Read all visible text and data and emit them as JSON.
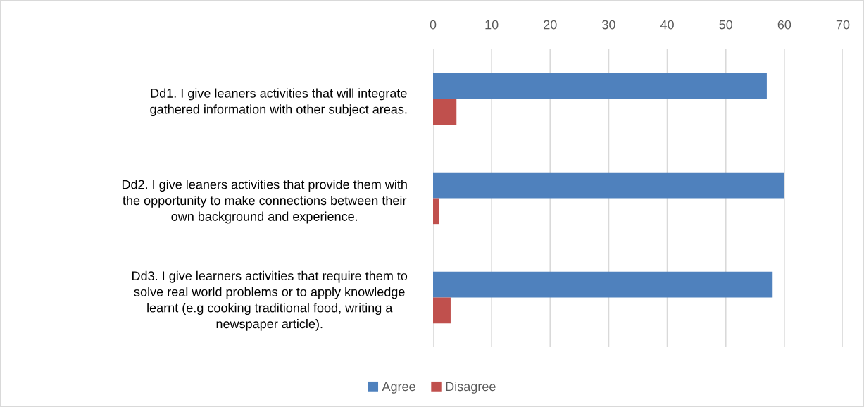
{
  "chart_data": {
    "type": "bar",
    "orientation": "horizontal",
    "categories": [
      "Dd1. I give leaners activities that will integrate\ngathered information with other subject areas.",
      "Dd2. I give leaners activities that provide them with\nthe opportunity to make connections between their\nown background and experience.",
      "Dd3. I give learners activities that require them to\nsolve real world problems or to apply knowledge\nlearnt (e.g cooking traditional food, writing a\nnewspaper article)."
    ],
    "series": [
      {
        "name": "Agree",
        "color": "#4f81bd",
        "values": [
          57,
          60,
          58
        ]
      },
      {
        "name": "Disagree",
        "color": "#c0504d",
        "values": [
          4,
          1,
          3
        ]
      }
    ],
    "xlim": [
      0,
      70
    ],
    "xticks": [
      0,
      10,
      20,
      30,
      40,
      50,
      60,
      70
    ],
    "grid": "x",
    "legend": "bottom"
  }
}
